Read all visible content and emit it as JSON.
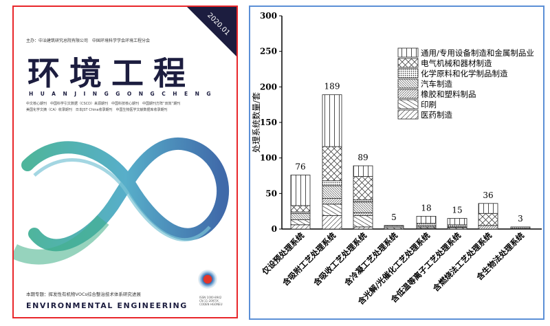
{
  "cover": {
    "sponsor": "主办：中冶建筑研究总院有限公司　中国环境科学学会环境工程分会",
    "title_cn": "环境工程",
    "title_pinyin": "HUANJINGGONGCHENG",
    "issue": "2020.01",
    "index_line1": "中文核心期刊　中国科学引文数据（CSCD）来源期刊　中国科技核心期刊　中国期刊方阵“双效”期刊",
    "index_line2": "美国化学文摘（CA）收录期刊　日本JST China收录期刊　中国生物医学文献数据库收录期刊",
    "topic": "本期专题：挥发性有机物VOCs综合整治技术体系研究进展",
    "title_en": "ENVIRONMENTAL ENGINEERING",
    "issn": [
      "ISSN 1000-8942",
      "CN 11-2097/X",
      "CODEN HGONEU"
    ]
  },
  "chart_data": {
    "type": "bar",
    "stacked": true,
    "ylabel": "处理系统数量/套",
    "xlabel": "",
    "ylim": [
      0,
      300
    ],
    "yticks": [
      0,
      50,
      100,
      150,
      200,
      250,
      300
    ],
    "legend_position": "top-right",
    "categories": [
      "仅设预处理系统",
      "含吸附工艺处理系统",
      "含吸收工艺处理系统",
      "含冷凝工艺处理系统",
      "含光解/光催化工艺处理系统",
      "含低温等离子工艺处理系统",
      "含燃烧法工艺处理系统",
      "含生物法处理系统"
    ],
    "totals": [
      76,
      189,
      89,
      5,
      18,
      15,
      36,
      3
    ],
    "series": [
      {
        "name": "医药制造",
        "pattern": "wide-forward-slash",
        "values": [
          6,
          19,
          3,
          0,
          1,
          0,
          0,
          0
        ]
      },
      {
        "name": "印刷",
        "pattern": "wide-back-slash",
        "values": [
          7,
          16,
          16,
          2,
          2,
          2,
          0,
          1
        ]
      },
      {
        "name": "橡胶和塑料制品",
        "pattern": "forward-slash",
        "values": [
          0,
          8,
          4,
          0,
          0,
          0,
          5,
          0
        ]
      },
      {
        "name": "汽车制造",
        "pattern": "back-slash",
        "values": [
          9,
          18,
          15,
          0,
          2,
          1,
          0,
          0
        ]
      },
      {
        "name": "化学原料和化学制品制造",
        "pattern": "dots",
        "values": [
          2,
          7,
          3,
          2,
          3,
          3,
          0,
          2
        ]
      },
      {
        "name": "电气机械和器材制造",
        "pattern": "crosshatch",
        "values": [
          9,
          48,
          33,
          0,
          0,
          0,
          17,
          0
        ]
      },
      {
        "name": "通用/专用设备制造和金属制品业",
        "pattern": "vertical",
        "values": [
          43,
          73,
          15,
          1,
          10,
          9,
          14,
          0
        ]
      }
    ],
    "grid": false
  }
}
